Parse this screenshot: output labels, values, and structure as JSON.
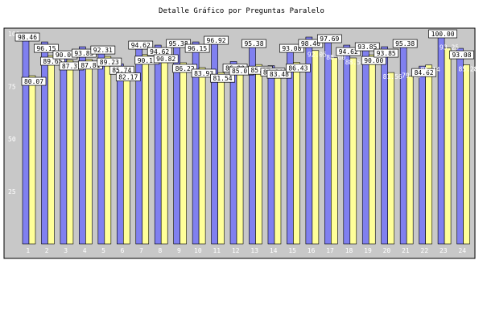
{
  "chart_data": {
    "type": "bar",
    "title": "Detalle Gráfico por Preguntas Paralelo",
    "xlabel": "",
    "ylabel": "",
    "ylim": [
      0,
      100
    ],
    "yticks": [
      25,
      50,
      75,
      100
    ],
    "grid": false,
    "categories": [
      "1",
      "2",
      "3",
      "4",
      "5",
      "6",
      "7",
      "8",
      "9",
      "10",
      "11",
      "12",
      "13",
      "14",
      "15",
      "16",
      "17",
      "18",
      "19",
      "20",
      "21",
      "22",
      "23",
      "24"
    ],
    "series": [
      {
        "name": "Serie 1",
        "color": "#8080f0",
        "values": [
          98.46,
          96.15,
          90.0,
          93.85,
          92.31,
          85.74,
          94.62,
          94.62,
          95.38,
          96.15,
          96.92,
          86.8,
          95.38,
          84.84,
          93.08,
          98.46,
          97.69,
          94.62,
          93.85,
          93.85,
          95.38,
          84.62,
          100.0,
          93.08
        ],
        "labels": [
          "98.46",
          "96.15",
          "90.00",
          "93.85",
          "92.31",
          "85.74",
          "94.62",
          "94.62",
          "95.38",
          "96.15",
          "96.92",
          "86.80",
          "95.38",
          "84.84",
          "93.08",
          "98.46",
          "97.69",
          "94.62",
          "93.85",
          "93.85",
          "95.38",
          "84.62",
          "100.00",
          "93.08"
        ]
      },
      {
        "name": "Serie 2",
        "color": "#ffff99",
        "values": [
          80.07,
          89.65,
          87.37,
          87.81,
          89.23,
          82.17,
          90.11,
          90.82,
          86.22,
          83.93,
          81.54,
          85.01,
          85.37,
          83.48,
          86.43,
          92.05,
          88.6,
          88.5,
          90.0,
          81.56,
          79.86,
          85.14,
          93.25,
          85.28
        ],
        "labels": [
          "80.07",
          "89.65",
          "87.37",
          "87.81",
          "89.23",
          "82.17",
          "90.11",
          "90.82",
          "86.22",
          "83.93",
          "81.54",
          "85.01",
          "85.37",
          "83.48",
          "86.43",
          "92.05",
          "88.60",
          "88.50",
          "90.00",
          "81.56",
          "79.86",
          "85.14",
          "93.25",
          "85.28"
        ]
      }
    ]
  }
}
